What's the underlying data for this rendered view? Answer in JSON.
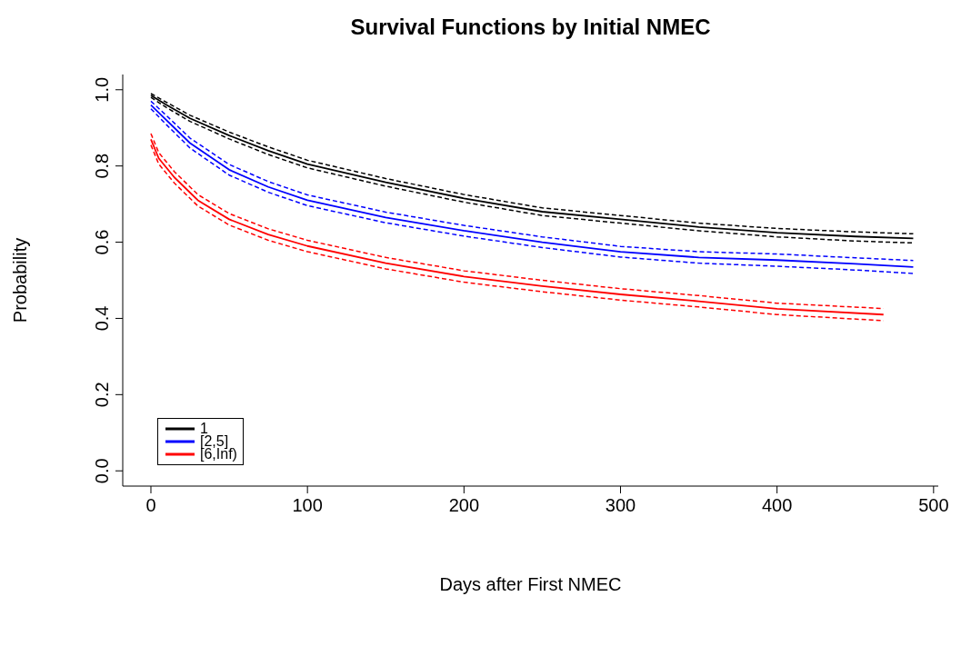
{
  "chart_data": {
    "type": "line",
    "title": "Survival Functions by Initial NMEC",
    "xlabel": "Days after First NMEC",
    "ylabel": "Probability",
    "xlim": [
      -18,
      503
    ],
    "xticks": [
      0,
      100,
      200,
      300,
      400,
      500
    ],
    "ylim": [
      -0.04,
      1.04
    ],
    "yticks": [
      {
        "value": 0,
        "label": "0.0"
      },
      {
        "value": 0.2,
        "label": "0.2"
      },
      {
        "value": 0.4,
        "label": "0.4"
      },
      {
        "value": 0.6,
        "label": "0.6"
      },
      {
        "value": 0.8,
        "label": "0.8"
      },
      {
        "value": 1,
        "label": "1.0"
      }
    ],
    "grid": false,
    "legend": "bottom left",
    "marker": "none",
    "line_style": "solid",
    "series": [
      {
        "name": "1",
        "color": "#000000",
        "x": [
          0,
          10,
          25,
          50,
          75,
          100,
          150,
          200,
          250,
          300,
          350,
          400,
          450,
          487
        ],
        "values": [
          0.985,
          0.96,
          0.925,
          0.88,
          0.84,
          0.805,
          0.757,
          0.715,
          0.68,
          0.66,
          0.64,
          0.625,
          0.615,
          0.61
        ]
      },
      {
        "color": "#000000",
        "line_style": "dashed",
        "x": [
          0,
          10,
          25,
          50,
          75,
          100,
          150,
          200,
          250,
          300,
          350,
          400,
          450,
          487
        ],
        "values": [
          0.98,
          0.953,
          0.917,
          0.871,
          0.83,
          0.795,
          0.747,
          0.705,
          0.67,
          0.65,
          0.63,
          0.614,
          0.603,
          0.598
        ]
      },
      {
        "color": "#000000",
        "line_style": "dashed",
        "x": [
          0,
          10,
          25,
          50,
          75,
          100,
          150,
          200,
          250,
          300,
          350,
          400,
          450,
          487
        ],
        "values": [
          0.99,
          0.967,
          0.933,
          0.889,
          0.85,
          0.815,
          0.767,
          0.725,
          0.69,
          0.67,
          0.65,
          0.636,
          0.627,
          0.622
        ]
      },
      {
        "name": "[2,5]",
        "color": "#0000ff",
        "x": [
          0,
          10,
          25,
          50,
          75,
          100,
          150,
          200,
          250,
          300,
          350,
          400,
          450,
          487
        ],
        "values": [
          0.96,
          0.92,
          0.86,
          0.79,
          0.745,
          0.71,
          0.665,
          0.63,
          0.6,
          0.575,
          0.56,
          0.553,
          0.543,
          0.535
        ]
      },
      {
        "color": "#0000ff",
        "line_style": "dashed",
        "x": [
          0,
          10,
          25,
          50,
          75,
          100,
          150,
          200,
          250,
          300,
          350,
          400,
          450,
          487
        ],
        "values": [
          0.95,
          0.908,
          0.847,
          0.776,
          0.731,
          0.696,
          0.651,
          0.616,
          0.586,
          0.561,
          0.545,
          0.537,
          0.527,
          0.518
        ]
      },
      {
        "color": "#0000ff",
        "line_style": "dashed",
        "x": [
          0,
          10,
          25,
          50,
          75,
          100,
          150,
          200,
          250,
          300,
          350,
          400,
          450,
          487
        ],
        "values": [
          0.97,
          0.932,
          0.873,
          0.804,
          0.759,
          0.724,
          0.679,
          0.644,
          0.614,
          0.589,
          0.575,
          0.569,
          0.559,
          0.552
        ]
      },
      {
        "name": "[6,Inf)",
        "color": "#ff0000",
        "x": [
          0,
          5,
          15,
          30,
          50,
          75,
          100,
          150,
          200,
          250,
          300,
          350,
          400,
          468
        ],
        "values": [
          0.87,
          0.82,
          0.77,
          0.71,
          0.66,
          0.62,
          0.59,
          0.545,
          0.51,
          0.485,
          0.463,
          0.445,
          0.425,
          0.41
        ]
      },
      {
        "color": "#ff0000",
        "line_style": "dashed",
        "x": [
          0,
          5,
          15,
          30,
          50,
          75,
          100,
          150,
          200,
          250,
          300,
          350,
          400,
          468
        ],
        "values": [
          0.855,
          0.805,
          0.755,
          0.695,
          0.645,
          0.605,
          0.575,
          0.53,
          0.495,
          0.47,
          0.448,
          0.43,
          0.41,
          0.394
        ]
      },
      {
        "color": "#ff0000",
        "line_style": "dashed",
        "x": [
          0,
          5,
          15,
          30,
          50,
          75,
          100,
          150,
          200,
          250,
          300,
          350,
          400,
          468
        ],
        "values": [
          0.885,
          0.835,
          0.785,
          0.725,
          0.675,
          0.635,
          0.605,
          0.56,
          0.525,
          0.5,
          0.478,
          0.46,
          0.44,
          0.426
        ]
      }
    ]
  }
}
